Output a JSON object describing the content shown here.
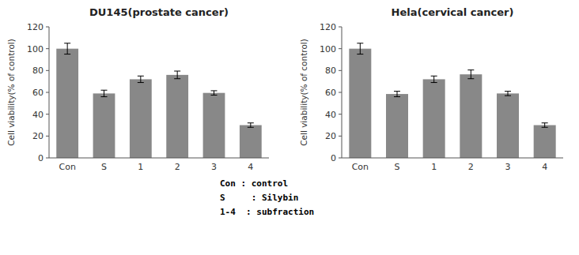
{
  "chart_data": [
    {
      "type": "bar",
      "title": "DU145(prostate cancer)",
      "categories": [
        "Con",
        "S",
        "1",
        "2",
        "3",
        "4"
      ],
      "values": [
        100,
        59,
        72,
        76,
        59.5,
        30
      ],
      "errors": [
        5,
        3,
        3,
        3.5,
        2,
        2
      ],
      "ylabel": "Cell viability(% of control)",
      "ylim": [
        0,
        120
      ],
      "yticks": [
        0,
        20,
        40,
        60,
        80,
        100,
        120
      ],
      "color": "#888888"
    },
    {
      "type": "bar",
      "title": "Hela(cervical cancer)",
      "categories": [
        "Con",
        "S",
        "1",
        "2",
        "3",
        "4"
      ],
      "values": [
        100,
        58.5,
        72,
        76.5,
        59,
        30
      ],
      "errors": [
        5,
        2.5,
        3,
        4,
        2,
        2
      ],
      "ylabel": "Cell viability(% of control)",
      "ylim": [
        0,
        120
      ],
      "yticks": [
        0,
        20,
        40,
        60,
        80,
        100,
        120
      ],
      "color": "#888888"
    }
  ],
  "annotations": [
    "Con : control",
    "S     : Silybin",
    "1-4  : subfraction"
  ]
}
